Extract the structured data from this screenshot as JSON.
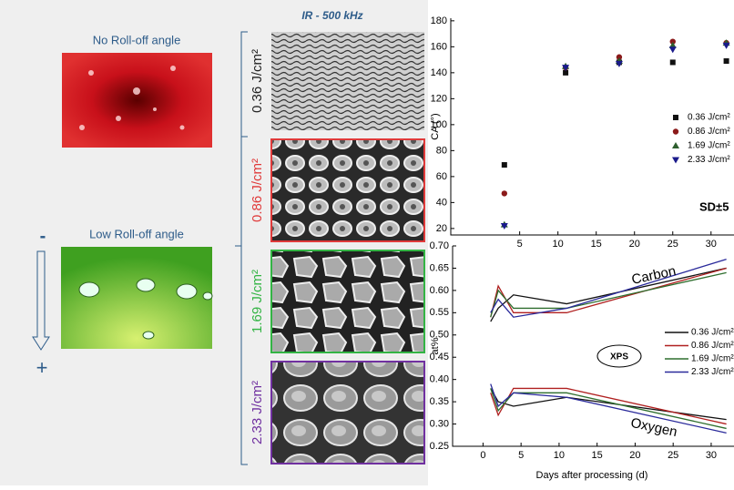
{
  "figure": {
    "title": "IR - 500 kHz",
    "top_label": "No Roll-off angle",
    "bottom_label": "Low Roll-off angle",
    "minus": "-",
    "plus": "+",
    "fluences": [
      {
        "label": "0.36 J/cm²",
        "color": "#222222"
      },
      {
        "label": "0.86 J/cm²",
        "color": "#e03a3a"
      },
      {
        "label": "1.69 J/cm²",
        "color": "#33b444"
      },
      {
        "label": "2.33 J/cm²",
        "color": "#7030a0"
      }
    ]
  },
  "chart_data": [
    {
      "type": "scatter",
      "ylabel": "CA (°)",
      "annotation": "SD±5",
      "x": [
        3,
        11,
        18,
        25,
        32
      ],
      "xlim": [
        -4,
        33
      ],
      "xticks": [
        5,
        10,
        15,
        20,
        25,
        30
      ],
      "ylim": [
        15,
        182
      ],
      "yticks": [
        20,
        40,
        60,
        80,
        100,
        120,
        140,
        160,
        180
      ],
      "series": [
        {
          "name": "0.36 J/cm²",
          "color": "#111111",
          "marker": "square",
          "values": [
            69,
            140,
            148,
            148,
            149
          ]
        },
        {
          "name": "0.86 J/cm²",
          "color": "#8b1a1a",
          "marker": "circle",
          "values": [
            47,
            144,
            152,
            164,
            163
          ]
        },
        {
          "name": "1.69 J/cm²",
          "color": "#2e5e2e",
          "marker": "triangle",
          "values": [
            23,
            145,
            149,
            161,
            163
          ]
        },
        {
          "name": "2.33 J/cm²",
          "color": "#1a1a8b",
          "marker": "down-triangle",
          "values": [
            22,
            144,
            147,
            158,
            161
          ]
        }
      ]
    },
    {
      "type": "line",
      "xlabel": "Days after processing (d)",
      "ylabel": "at%",
      "annotations": [
        "Carbon",
        "Oxygen",
        "XPS"
      ],
      "x": [
        1,
        2,
        4,
        11,
        32
      ],
      "xlim": [
        -4,
        33
      ],
      "xticks": [
        0,
        5,
        10,
        15,
        20,
        25,
        30
      ],
      "ylim": [
        0.25,
        0.7
      ],
      "yticks": [
        {
          "value": 0.25,
          "label": "0.25"
        },
        {
          "value": 0.3,
          "label": "0.30"
        },
        {
          "value": 0.35,
          "label": "0.35"
        },
        {
          "value": 0.4,
          "label": "0.40"
        },
        {
          "value": 0.45,
          "label": "0.45"
        },
        {
          "value": 0.5,
          "label": "0.50"
        },
        {
          "value": 0.55,
          "label": "0.55"
        },
        {
          "value": 0.6,
          "label": "0.60"
        },
        {
          "value": 0.65,
          "label": "0.65"
        },
        {
          "value": 0.7,
          "label": "0.70"
        }
      ],
      "series": [
        {
          "name": "0.36 J/cm²",
          "color": "#111111",
          "carbon": [
            0.53,
            0.56,
            0.59,
            0.57,
            0.65
          ],
          "oxygen": [
            0.38,
            0.35,
            0.34,
            0.36,
            0.31
          ]
        },
        {
          "name": "0.86 J/cm²",
          "color": "#b02020",
          "carbon": [
            0.54,
            0.61,
            0.55,
            0.55,
            0.65
          ],
          "oxygen": [
            0.37,
            0.32,
            0.38,
            0.38,
            0.3
          ]
        },
        {
          "name": "1.69 J/cm²",
          "color": "#2e6e2e",
          "carbon": [
            0.54,
            0.6,
            0.56,
            0.56,
            0.64
          ],
          "oxygen": [
            0.38,
            0.33,
            0.37,
            0.37,
            0.29
          ]
        },
        {
          "name": "2.33 J/cm²",
          "color": "#2a2a9b",
          "carbon": [
            0.55,
            0.58,
            0.54,
            0.56,
            0.67
          ],
          "oxygen": [
            0.39,
            0.34,
            0.37,
            0.36,
            0.28
          ]
        }
      ]
    }
  ]
}
